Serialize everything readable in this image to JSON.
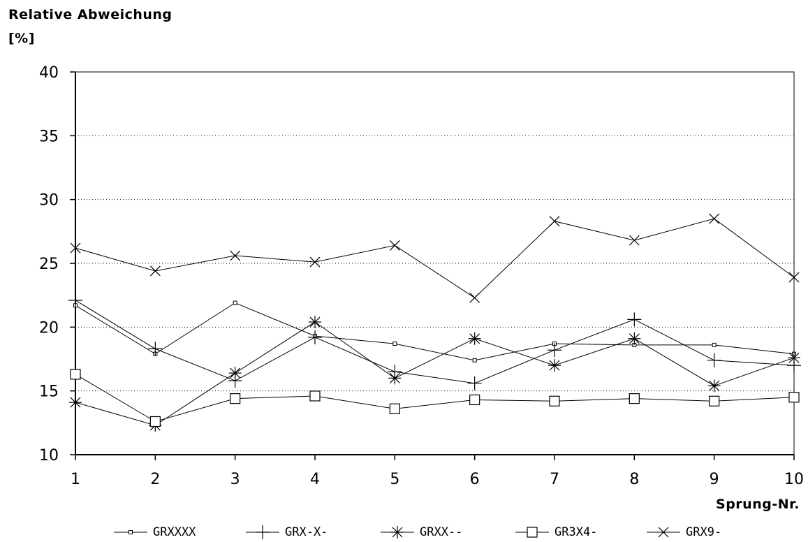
{
  "chart_data": {
    "type": "line",
    "ylabel": [
      "Relative Abweichung",
      "[%]"
    ],
    "xlabel": "Sprung-Nr.",
    "x": [
      1,
      2,
      3,
      4,
      5,
      6,
      7,
      8,
      9,
      10
    ],
    "ylim": [
      10,
      40
    ],
    "yticks": [
      10,
      15,
      20,
      25,
      30,
      35,
      40
    ],
    "grid": "horizontal-dotted",
    "legend_position": "bottom",
    "series": [
      {
        "name": "GRXXXX",
        "marker": "small-square",
        "values": [
          21.7,
          17.9,
          21.9,
          19.3,
          18.7,
          17.4,
          18.7,
          18.6,
          18.6,
          17.9
        ]
      },
      {
        "name": "GRX-X-",
        "marker": "plus",
        "values": [
          22.1,
          18.3,
          15.8,
          19.2,
          16.5,
          15.6,
          18.2,
          20.6,
          17.4,
          17.0
        ]
      },
      {
        "name": "GRXX--",
        "marker": "asterisk",
        "values": [
          14.1,
          12.3,
          16.4,
          20.4,
          16.0,
          19.1,
          17.0,
          19.1,
          15.4,
          17.6
        ]
      },
      {
        "name": "GR3X4-",
        "marker": "open-square",
        "values": [
          16.3,
          12.6,
          14.4,
          14.6,
          13.6,
          14.3,
          14.2,
          14.4,
          14.2,
          14.5
        ]
      },
      {
        "name": "GRX9-",
        "marker": "x",
        "values": [
          26.2,
          24.4,
          25.6,
          25.1,
          26.4,
          22.3,
          28.3,
          26.8,
          28.5,
          23.9
        ]
      }
    ]
  }
}
